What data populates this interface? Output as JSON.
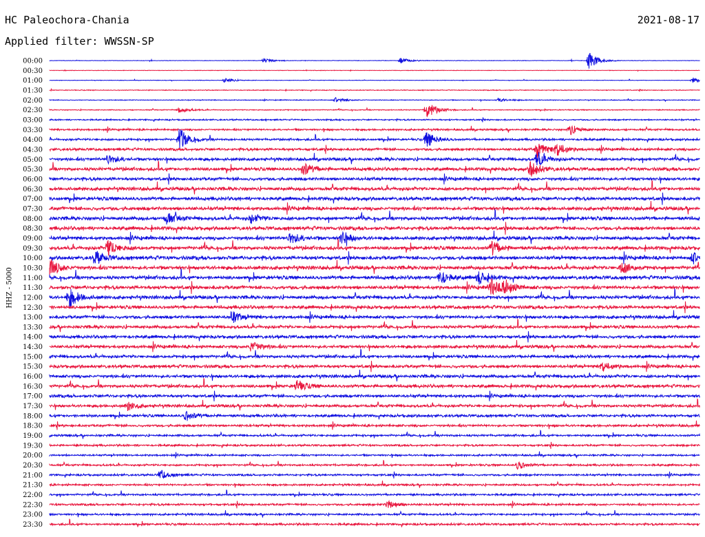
{
  "header": {
    "station": "HC Paleochora-Chania",
    "date": "2021-08-17",
    "filter": "Applied filter: WWSSN-SP"
  },
  "chart_data": {
    "type": "line",
    "title": "HC Paleochora-Chania",
    "ylabel": "HHZ - 5000",
    "rows": [
      "00:00",
      "00:30",
      "01:00",
      "01:30",
      "02:00",
      "02:30",
      "03:00",
      "03:30",
      "04:00",
      "04:30",
      "05:00",
      "05:30",
      "06:00",
      "06:30",
      "07:00",
      "07:30",
      "08:00",
      "08:30",
      "09:00",
      "09:30",
      "10:00",
      "10:30",
      "11:00",
      "11:30",
      "12:00",
      "12:30",
      "13:00",
      "13:30",
      "14:00",
      "14:30",
      "15:00",
      "15:30",
      "16:00",
      "16:30",
      "17:00",
      "17:30",
      "18:00",
      "18:30",
      "19:00",
      "19:30",
      "20:00",
      "20:30",
      "21:00",
      "21:30",
      "22:00",
      "22:30",
      "23:00",
      "23:30"
    ],
    "trace_colors": [
      "#1010e0",
      "#e8143c"
    ],
    "noise_level": [
      0.3,
      0.3,
      0.3,
      0.5,
      0.5,
      0.6,
      0.9,
      1.2,
      1.4,
      1.7,
      2.0,
      2.2,
      2.1,
      2.3,
      2.3,
      2.4,
      2.4,
      2.4,
      2.4,
      2.4,
      2.5,
      2.5,
      2.4,
      2.4,
      2.3,
      2.2,
      2.2,
      2.1,
      2.1,
      2.1,
      2.0,
      2.1,
      2.1,
      2.1,
      2.0,
      1.9,
      1.8,
      1.6,
      1.4,
      1.3,
      1.2,
      1.3,
      1.3,
      1.3,
      1.3,
      1.4,
      1.3,
      1.4
    ],
    "events": [
      {
        "row": 0,
        "x": 0.83,
        "amp": 14
      },
      {
        "row": 0,
        "x": 0.33,
        "amp": 3
      },
      {
        "row": 0,
        "x": 0.54,
        "amp": 4
      },
      {
        "row": 2,
        "x": 0.27,
        "amp": 4
      },
      {
        "row": 2,
        "x": 0.99,
        "amp": 4
      },
      {
        "row": 4,
        "x": 0.44,
        "amp": 4
      },
      {
        "row": 4,
        "x": 0.69,
        "amp": 3
      },
      {
        "row": 5,
        "x": 0.2,
        "amp": 5
      },
      {
        "row": 5,
        "x": 0.58,
        "amp": 14
      },
      {
        "row": 7,
        "x": 0.8,
        "amp": 8
      },
      {
        "row": 8,
        "x": 0.2,
        "amp": 16
      },
      {
        "row": 8,
        "x": 0.58,
        "amp": 12
      },
      {
        "row": 9,
        "x": 0.75,
        "amp": 12
      },
      {
        "row": 9,
        "x": 0.78,
        "amp": 10
      },
      {
        "row": 10,
        "x": 0.09,
        "amp": 8
      },
      {
        "row": 10,
        "x": 0.75,
        "amp": 10
      },
      {
        "row": 11,
        "x": 0.39,
        "amp": 10
      },
      {
        "row": 11,
        "x": 0.74,
        "amp": 12
      },
      {
        "row": 16,
        "x": 0.18,
        "amp": 8
      },
      {
        "row": 16,
        "x": 0.31,
        "amp": 6
      },
      {
        "row": 18,
        "x": 0.37,
        "amp": 10
      },
      {
        "row": 18,
        "x": 0.45,
        "amp": 9
      },
      {
        "row": 19,
        "x": 0.09,
        "amp": 12
      },
      {
        "row": 19,
        "x": 0.68,
        "amp": 10
      },
      {
        "row": 20,
        "x": 0.07,
        "amp": 10
      },
      {
        "row": 20,
        "x": 0.99,
        "amp": 8
      },
      {
        "row": 21,
        "x": 0.0,
        "amp": 14
      },
      {
        "row": 21,
        "x": 0.88,
        "amp": 8
      },
      {
        "row": 22,
        "x": 0.6,
        "amp": 10
      },
      {
        "row": 22,
        "x": 0.66,
        "amp": 9
      },
      {
        "row": 23,
        "x": 0.68,
        "amp": 12
      },
      {
        "row": 23,
        "x": 0.7,
        "amp": 10
      },
      {
        "row": 24,
        "x": 0.03,
        "amp": 14
      },
      {
        "row": 26,
        "x": 0.28,
        "amp": 8
      },
      {
        "row": 29,
        "x": 0.31,
        "amp": 8
      },
      {
        "row": 31,
        "x": 0.85,
        "amp": 7
      },
      {
        "row": 33,
        "x": 0.38,
        "amp": 8
      },
      {
        "row": 35,
        "x": 0.12,
        "amp": 6
      },
      {
        "row": 36,
        "x": 0.21,
        "amp": 7
      },
      {
        "row": 41,
        "x": 0.72,
        "amp": 6
      },
      {
        "row": 42,
        "x": 0.17,
        "amp": 7
      },
      {
        "row": 45,
        "x": 0.52,
        "amp": 6
      }
    ],
    "grid": false
  }
}
